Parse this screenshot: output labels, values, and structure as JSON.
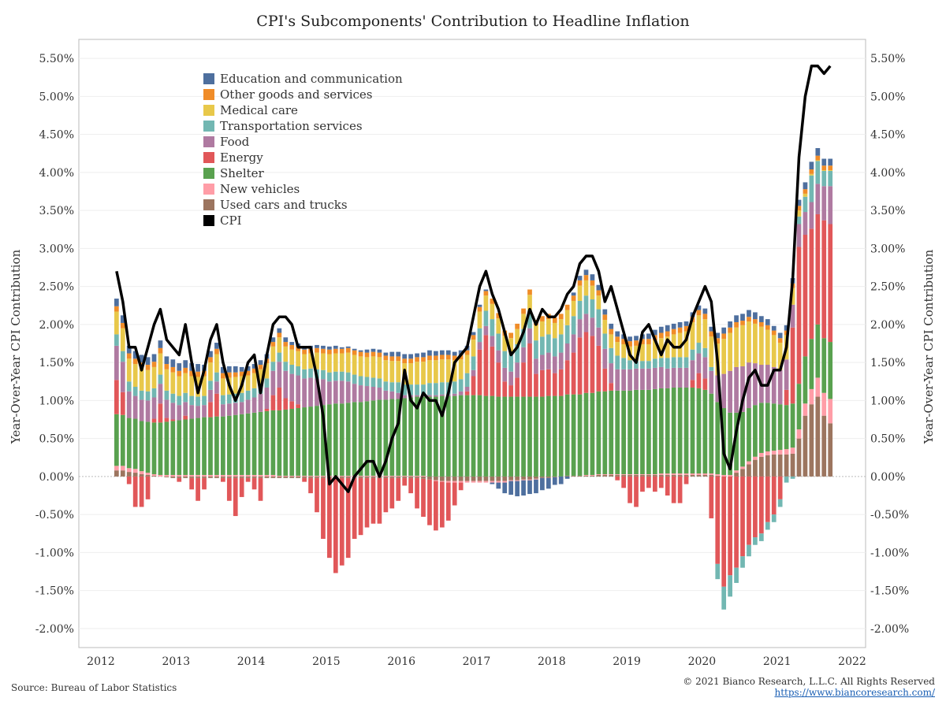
{
  "title": "CPI's Subcomponents' Contribution to Headline Inflation",
  "source": "Source: Bureau of Labor Statistics",
  "copyright": "© 2021 Bianco Research, L.L.C. All Rights Reserved",
  "url": "https://www.biancoresearch.com/",
  "chart_data": {
    "type": "bar",
    "title": "CPI's Subcomponents' Contribution to Headline Inflation",
    "ylabel": "Year-Over-Year CPI Contribution",
    "ylabel_right": "Year-Over-Year CPI Contribution",
    "ylim": [
      -2.25,
      5.75
    ],
    "y_ticks": [
      -2.0,
      -1.5,
      -1.0,
      -0.5,
      0.0,
      0.5,
      1.0,
      1.5,
      2.0,
      2.5,
      3.0,
      3.5,
      4.0,
      4.5,
      5.0,
      5.5
    ],
    "y_tick_labels": [
      "-2.00%",
      "-1.50%",
      "-1.00%",
      "-0.50%",
      "0.00%",
      "0.50%",
      "1.00%",
      "1.50%",
      "2.00%",
      "2.50%",
      "3.00%",
      "3.50%",
      "4.00%",
      "4.50%",
      "5.00%",
      "5.50%"
    ],
    "x_tick_labels": [
      "2012",
      "2013",
      "2014",
      "2015",
      "2016",
      "2017",
      "2018",
      "2019",
      "2020",
      "2021",
      "2022"
    ],
    "x_start": "2012-03",
    "legend_position": "top-left",
    "stacked": true,
    "series": [
      {
        "name": "Education and communication",
        "color": "#4e6f9e"
      },
      {
        "name": "Other goods and services",
        "color": "#f08c28"
      },
      {
        "name": "Medical care",
        "color": "#e8c84a"
      },
      {
        "name": "Transportation services",
        "color": "#72b7b2"
      },
      {
        "name": "Food",
        "color": "#af7aa1"
      },
      {
        "name": "Energy",
        "color": "#e15759"
      },
      {
        "name": "Shelter",
        "color": "#59a14f"
      },
      {
        "name": "New vehicles",
        "color": "#ff9da7"
      },
      {
        "name": "Used cars and trucks",
        "color": "#9c755f"
      },
      {
        "name": "CPI",
        "color": "#000000"
      }
    ],
    "cpi": [
      2.7,
      2.3,
      1.7,
      1.7,
      1.4,
      1.7,
      2.0,
      2.2,
      1.8,
      1.7,
      1.6,
      2.0,
      1.5,
      1.1,
      1.4,
      1.8,
      2.0,
      1.5,
      1.2,
      1.0,
      1.2,
      1.5,
      1.6,
      1.1,
      1.6,
      2.0,
      2.1,
      2.1,
      2.0,
      1.7,
      1.7,
      1.7,
      1.3,
      0.8,
      -0.1,
      0.0,
      -0.1,
      -0.2,
      0.0,
      0.1,
      0.2,
      0.2,
      0.0,
      0.2,
      0.5,
      0.7,
      1.4,
      1.0,
      0.9,
      1.1,
      1.0,
      1.0,
      0.8,
      1.1,
      1.5,
      1.6,
      1.7,
      2.1,
      2.5,
      2.7,
      2.4,
      2.2,
      1.9,
      1.6,
      1.7,
      1.9,
      2.2,
      2.0,
      2.2,
      2.1,
      2.1,
      2.2,
      2.4,
      2.5,
      2.8,
      2.9,
      2.9,
      2.7,
      2.3,
      2.5,
      2.2,
      1.9,
      1.6,
      1.5,
      1.9,
      2.0,
      1.8,
      1.6,
      1.8,
      1.7,
      1.7,
      1.8,
      2.1,
      2.3,
      2.5,
      2.3,
      1.5,
      0.3,
      0.1,
      0.6,
      1.0,
      1.3,
      1.4,
      1.2,
      1.2,
      1.4,
      1.4,
      1.7,
      2.6,
      4.2,
      5.0,
      5.4,
      5.4,
      5.3,
      5.4
    ],
    "components": {
      "education": [
        0.1,
        0.1,
        0.1,
        0.1,
        0.1,
        0.1,
        0.1,
        0.1,
        0.1,
        0.1,
        0.1,
        0.1,
        0.1,
        0.1,
        0.08,
        0.08,
        0.08,
        0.08,
        0.08,
        0.08,
        0.06,
        0.06,
        0.06,
        0.06,
        0.06,
        0.06,
        0.06,
        0.06,
        0.04,
        0.04,
        0.04,
        0.04,
        0.04,
        0.04,
        0.04,
        0.04,
        0.02,
        0.02,
        0.02,
        0.02,
        0.04,
        0.04,
        0.04,
        0.04,
        0.06,
        0.06,
        0.06,
        0.06,
        0.05,
        0.06,
        0.07,
        0.06,
        0.06,
        0.06,
        0.05,
        0.06,
        0.06,
        0.04,
        0.03,
        0.02,
        -0.02,
        -0.08,
        -0.14,
        -0.18,
        -0.2,
        -0.2,
        -0.18,
        -0.18,
        -0.16,
        -0.14,
        -0.1,
        -0.1,
        -0.03,
        0.04,
        0.06,
        0.07,
        0.08,
        0.07,
        0.07,
        0.07,
        0.07,
        0.06,
        0.06,
        0.06,
        0.06,
        0.07,
        0.07,
        0.08,
        0.08,
        0.07,
        0.07,
        0.06,
        0.06,
        0.06,
        0.07,
        0.06,
        0.07,
        0.08,
        0.08,
        0.09,
        0.09,
        0.09,
        0.09,
        0.08,
        0.08,
        0.06,
        0.07,
        0.07,
        0.07,
        0.08,
        0.09,
        0.1,
        0.1,
        0.09,
        0.09
      ],
      "other": [
        0.07,
        0.07,
        0.07,
        0.07,
        0.07,
        0.07,
        0.07,
        0.07,
        0.07,
        0.07,
        0.07,
        0.07,
        0.07,
        0.07,
        0.07,
        0.07,
        0.07,
        0.07,
        0.07,
        0.06,
        0.06,
        0.06,
        0.06,
        0.06,
        0.06,
        0.06,
        0.06,
        0.06,
        0.06,
        0.06,
        0.06,
        0.06,
        0.06,
        0.06,
        0.06,
        0.06,
        0.06,
        0.06,
        0.06,
        0.06,
        0.06,
        0.06,
        0.06,
        0.06,
        0.06,
        0.06,
        0.06,
        0.06,
        0.06,
        0.06,
        0.06,
        0.06,
        0.06,
        0.06,
        0.06,
        0.06,
        0.06,
        0.06,
        0.06,
        0.06,
        0.07,
        0.07,
        0.07,
        0.07,
        0.07,
        0.07,
        0.07,
        0.07,
        0.07,
        0.07,
        0.07,
        0.07,
        0.07,
        0.07,
        0.07,
        0.07,
        0.07,
        0.07,
        0.07,
        0.07,
        0.07,
        0.07,
        0.07,
        0.07,
        0.07,
        0.07,
        0.07,
        0.07,
        0.07,
        0.07,
        0.07,
        0.07,
        0.07,
        0.07,
        0.07,
        0.07,
        0.07,
        0.07,
        0.07,
        0.07,
        0.06,
        0.06,
        0.06,
        0.06,
        0.06,
        0.06,
        0.06,
        0.06,
        0.06,
        0.06,
        0.06,
        0.06,
        0.06,
        0.06,
        0.06
      ],
      "medical": [
        0.3,
        0.3,
        0.3,
        0.3,
        0.3,
        0.28,
        0.28,
        0.28,
        0.28,
        0.28,
        0.26,
        0.26,
        0.26,
        0.26,
        0.26,
        0.24,
        0.24,
        0.22,
        0.22,
        0.22,
        0.22,
        0.2,
        0.2,
        0.2,
        0.2,
        0.2,
        0.2,
        0.2,
        0.2,
        0.2,
        0.2,
        0.2,
        0.22,
        0.22,
        0.24,
        0.24,
        0.24,
        0.26,
        0.26,
        0.26,
        0.26,
        0.28,
        0.28,
        0.28,
        0.28,
        0.28,
        0.28,
        0.28,
        0.3,
        0.3,
        0.3,
        0.3,
        0.3,
        0.3,
        0.28,
        0.26,
        0.24,
        0.22,
        0.22,
        0.2,
        0.2,
        0.2,
        0.2,
        0.2,
        0.2,
        0.2,
        0.2,
        0.2,
        0.2,
        0.2,
        0.2,
        0.2,
        0.2,
        0.2,
        0.2,
        0.2,
        0.18,
        0.18,
        0.18,
        0.18,
        0.18,
        0.18,
        0.18,
        0.2,
        0.22,
        0.22,
        0.24,
        0.26,
        0.28,
        0.3,
        0.32,
        0.34,
        0.36,
        0.36,
        0.38,
        0.4,
        0.42,
        0.46,
        0.5,
        0.52,
        0.54,
        0.54,
        0.52,
        0.5,
        0.46,
        0.42,
        0.36,
        0.32,
        0.22,
        0.08,
        0.04,
        0.02,
        0.01,
        0.01,
        0.01
      ],
      "transport": [
        0.15,
        0.14,
        0.13,
        0.12,
        0.12,
        0.12,
        0.12,
        0.12,
        0.12,
        0.12,
        0.12,
        0.12,
        0.12,
        0.12,
        0.12,
        0.12,
        0.12,
        0.12,
        0.12,
        0.12,
        0.12,
        0.12,
        0.12,
        0.12,
        0.12,
        0.12,
        0.12,
        0.12,
        0.12,
        0.12,
        0.12,
        0.12,
        0.12,
        0.12,
        0.12,
        0.12,
        0.12,
        0.12,
        0.12,
        0.12,
        0.12,
        0.12,
        0.12,
        0.12,
        0.12,
        0.14,
        0.14,
        0.14,
        0.14,
        0.14,
        0.16,
        0.16,
        0.16,
        0.16,
        0.16,
        0.16,
        0.18,
        0.18,
        0.18,
        0.2,
        0.22,
        0.22,
        0.22,
        0.24,
        0.24,
        0.24,
        0.24,
        0.24,
        0.24,
        0.24,
        0.24,
        0.24,
        0.24,
        0.24,
        0.24,
        0.24,
        0.24,
        0.24,
        0.2,
        0.2,
        0.18,
        0.15,
        0.12,
        0.1,
        0.1,
        0.1,
        0.12,
        0.12,
        0.14,
        0.14,
        0.14,
        0.14,
        0.14,
        0.14,
        0.12,
        0.05,
        -0.2,
        -0.3,
        -0.28,
        -0.2,
        -0.15,
        -0.15,
        -0.1,
        -0.1,
        -0.1,
        -0.1,
        -0.1,
        -0.08,
        -0.03,
        0.1,
        0.2,
        0.35,
        0.3,
        0.2,
        0.2
      ],
      "food": [
        0.45,
        0.4,
        0.35,
        0.3,
        0.28,
        0.28,
        0.28,
        0.26,
        0.24,
        0.22,
        0.2,
        0.18,
        0.18,
        0.16,
        0.16,
        0.16,
        0.16,
        0.16,
        0.16,
        0.16,
        0.16,
        0.18,
        0.2,
        0.24,
        0.28,
        0.32,
        0.34,
        0.36,
        0.36,
        0.38,
        0.38,
        0.38,
        0.36,
        0.34,
        0.3,
        0.3,
        0.3,
        0.28,
        0.24,
        0.22,
        0.2,
        0.18,
        0.16,
        0.12,
        0.1,
        0.08,
        0.04,
        0.03,
        0.02,
        0.02,
        0.02,
        0.02,
        0.02,
        0.02,
        0.03,
        0.05,
        0.06,
        0.08,
        0.1,
        0.12,
        0.14,
        0.16,
        0.18,
        0.18,
        0.2,
        0.2,
        0.2,
        0.2,
        0.2,
        0.22,
        0.22,
        0.22,
        0.22,
        0.24,
        0.24,
        0.24,
        0.24,
        0.24,
        0.26,
        0.26,
        0.28,
        0.28,
        0.28,
        0.28,
        0.28,
        0.28,
        0.28,
        0.28,
        0.26,
        0.26,
        0.26,
        0.26,
        0.26,
        0.26,
        0.28,
        0.3,
        0.35,
        0.45,
        0.55,
        0.6,
        0.6,
        0.6,
        0.55,
        0.5,
        0.5,
        0.48,
        0.45,
        0.4,
        0.3,
        0.3,
        0.3,
        0.35,
        0.4,
        0.45,
        0.5
      ],
      "energy": [
        0.45,
        0.3,
        -0.1,
        -0.4,
        -0.4,
        -0.3,
        0.05,
        0.25,
        0.05,
        0.02,
        -0.05,
        0.05,
        -0.15,
        -0.3,
        -0.15,
        0.2,
        0.3,
        -0.05,
        -0.3,
        -0.5,
        -0.25,
        -0.05,
        -0.15,
        -0.3,
        0.03,
        0.2,
        0.3,
        0.15,
        0.1,
        0.05,
        -0.05,
        -0.2,
        -0.45,
        -0.8,
        -1.05,
        -1.25,
        -1.15,
        -1.05,
        -0.8,
        -0.75,
        -0.65,
        -0.6,
        -0.6,
        -0.45,
        -0.4,
        -0.3,
        -0.1,
        -0.2,
        -0.4,
        -0.5,
        -0.6,
        -0.65,
        -0.6,
        -0.5,
        -0.3,
        -0.1,
        0.05,
        0.25,
        0.6,
        0.8,
        0.65,
        0.45,
        0.2,
        0.15,
        0.25,
        0.45,
        0.7,
        0.3,
        0.35,
        0.35,
        0.3,
        0.35,
        0.45,
        0.55,
        0.75,
        0.8,
        0.75,
        0.6,
        0.3,
        0.1,
        -0.05,
        -0.15,
        -0.35,
        -0.4,
        -0.2,
        -0.15,
        -0.2,
        -0.15,
        -0.25,
        -0.35,
        -0.35,
        -0.1,
        0.1,
        0.2,
        0.15,
        -0.55,
        -1.15,
        -1.45,
        -1.3,
        -1.2,
        -1.05,
        -0.9,
        -0.8,
        -0.75,
        -0.6,
        -0.5,
        -0.3,
        0.2,
        1.0,
        1.8,
        1.6,
        1.45,
        1.45,
        1.55,
        1.55
      ],
      "shelter": [
        0.68,
        0.67,
        0.66,
        0.66,
        0.66,
        0.67,
        0.68,
        0.69,
        0.7,
        0.71,
        0.72,
        0.73,
        0.74,
        0.75,
        0.76,
        0.76,
        0.77,
        0.77,
        0.78,
        0.79,
        0.8,
        0.81,
        0.82,
        0.83,
        0.84,
        0.85,
        0.86,
        0.87,
        0.88,
        0.89,
        0.9,
        0.91,
        0.92,
        0.93,
        0.94,
        0.95,
        0.95,
        0.96,
        0.97,
        0.97,
        0.98,
        0.99,
        1.0,
        1.0,
        1.01,
        1.01,
        1.02,
        1.03,
        1.04,
        1.04,
        1.05,
        1.05,
        1.06,
        1.06,
        1.06,
        1.07,
        1.07,
        1.07,
        1.07,
        1.06,
        1.06,
        1.05,
        1.05,
        1.05,
        1.05,
        1.05,
        1.05,
        1.05,
        1.05,
        1.06,
        1.06,
        1.06,
        1.07,
        1.07,
        1.07,
        1.08,
        1.08,
        1.09,
        1.09,
        1.1,
        1.1,
        1.1,
        1.1,
        1.11,
        1.11,
        1.11,
        1.12,
        1.12,
        1.12,
        1.13,
        1.13,
        1.13,
        1.13,
        1.12,
        1.1,
        1.05,
        0.95,
        0.88,
        0.82,
        0.76,
        0.72,
        0.7,
        0.68,
        0.66,
        0.64,
        0.62,
        0.6,
        0.58,
        0.58,
        0.6,
        0.62,
        0.66,
        0.7,
        0.72,
        0.75
      ],
      "newveh": [
        0.06,
        0.06,
        0.05,
        0.05,
        0.04,
        0.03,
        0.02,
        0.02,
        0.02,
        0.02,
        0.02,
        0.02,
        0.02,
        0.02,
        0.02,
        0.02,
        0.02,
        0.02,
        0.02,
        0.02,
        0.02,
        0.02,
        0.02,
        0.02,
        0.02,
        0.02,
        0.01,
        0.01,
        0.01,
        0.01,
        0.01,
        0.01,
        0.01,
        0.01,
        0.01,
        0.01,
        0.01,
        0.01,
        0.01,
        0.01,
        0.01,
        0.01,
        0.01,
        0.01,
        0.01,
        0.01,
        0.01,
        0.01,
        0.01,
        0.01,
        0.0,
        -0.01,
        -0.01,
        -0.02,
        -0.02,
        -0.02,
        -0.02,
        -0.02,
        -0.02,
        -0.02,
        -0.02,
        -0.02,
        -0.02,
        -0.01,
        -0.01,
        -0.01,
        -0.01,
        -0.01,
        0.0,
        0.0,
        0.0,
        0.0,
        0.0,
        0.0,
        0.0,
        0.01,
        0.01,
        0.01,
        0.01,
        0.01,
        0.01,
        0.01,
        0.01,
        0.01,
        0.01,
        0.01,
        0.01,
        0.02,
        0.02,
        0.02,
        0.02,
        0.02,
        0.02,
        0.02,
        0.02,
        0.02,
        0.02,
        0.02,
        0.02,
        0.03,
        0.03,
        0.04,
        0.04,
        0.05,
        0.05,
        0.05,
        0.06,
        0.07,
        0.08,
        0.12,
        0.16,
        0.2,
        0.25,
        0.3,
        0.32
      ],
      "usedcars": [
        0.08,
        0.08,
        0.06,
        0.05,
        0.03,
        0.02,
        0.01,
        0.0,
        -0.01,
        -0.02,
        -0.02,
        -0.02,
        -0.02,
        -0.02,
        -0.02,
        -0.02,
        -0.02,
        -0.02,
        -0.02,
        -0.02,
        -0.02,
        -0.02,
        -0.02,
        -0.02,
        -0.02,
        -0.02,
        -0.02,
        -0.02,
        -0.02,
        -0.02,
        -0.02,
        -0.02,
        -0.02,
        -0.02,
        -0.02,
        -0.02,
        -0.02,
        -0.02,
        -0.02,
        -0.02,
        -0.02,
        -0.02,
        -0.02,
        -0.02,
        -0.02,
        -0.02,
        -0.02,
        -0.02,
        -0.02,
        -0.03,
        -0.04,
        -0.05,
        -0.06,
        -0.06,
        -0.06,
        -0.06,
        -0.06,
        -0.06,
        -0.06,
        -0.06,
        -0.06,
        -0.06,
        -0.06,
        -0.05,
        -0.05,
        -0.04,
        -0.04,
        -0.03,
        -0.02,
        -0.02,
        -0.01,
        0.0,
        0.01,
        0.01,
        0.01,
        0.01,
        0.01,
        0.02,
        0.02,
        0.02,
        0.02,
        0.02,
        0.02,
        0.02,
        0.02,
        0.02,
        0.02,
        0.02,
        0.02,
        0.02,
        0.02,
        0.02,
        0.02,
        0.02,
        0.02,
        0.02,
        0.01,
        0.0,
        0.0,
        0.05,
        0.1,
        0.16,
        0.22,
        0.26,
        0.28,
        0.29,
        0.29,
        0.29,
        0.3,
        0.5,
        0.8,
        0.95,
        1.05,
        0.8,
        0.7
      ]
    },
    "component_order": [
      "usedcars",
      "newveh",
      "shelter",
      "energy",
      "food",
      "transport",
      "medical",
      "other",
      "education"
    ]
  }
}
